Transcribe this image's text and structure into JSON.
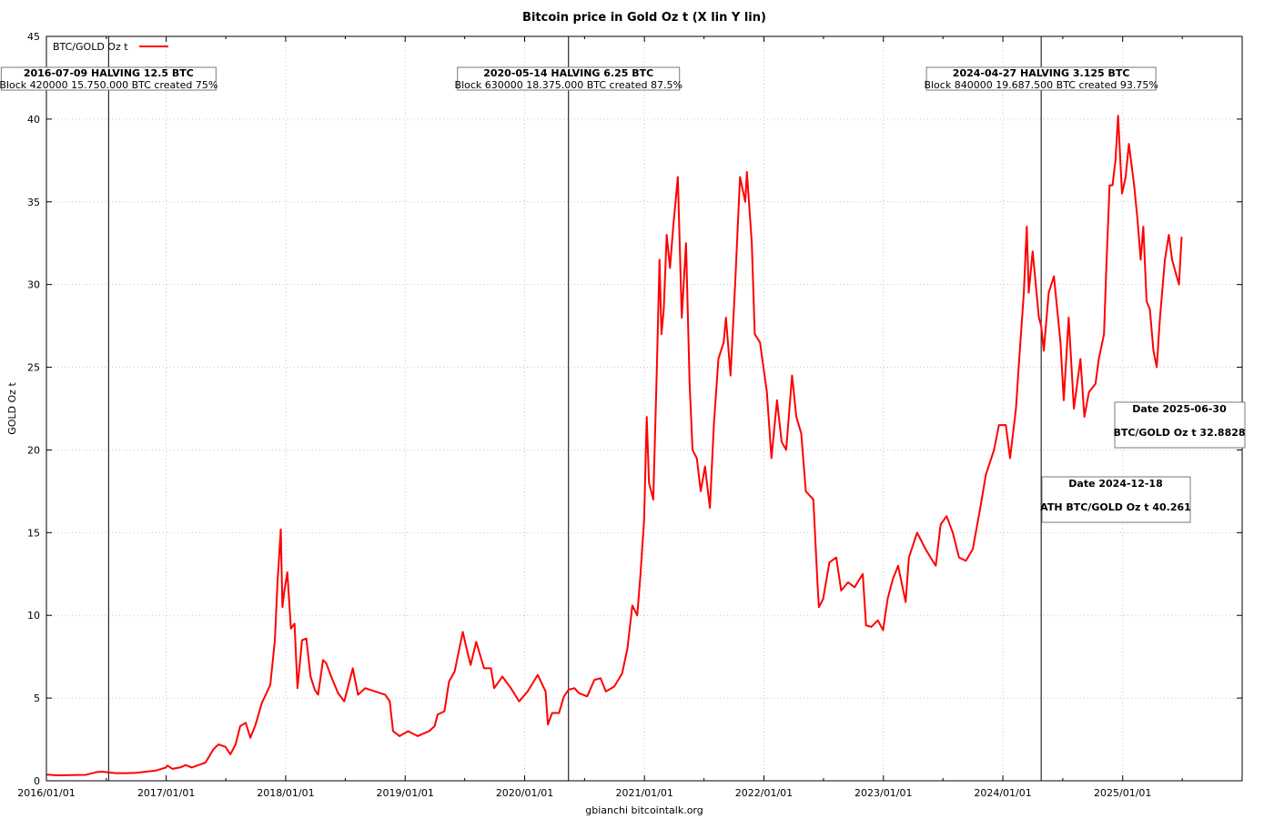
{
  "chart_data": {
    "type": "line",
    "title": "Bitcoin price in Gold Oz t (X lin Y lin)",
    "xlabel": "gbianchi bitcointalk.org",
    "ylabel": "GOLD Oz t",
    "xlim": [
      "2016-01-01",
      "2026-01-01"
    ],
    "ylim": [
      0,
      45
    ],
    "x_ticks": [
      "2016/01/01",
      "2017/01/01",
      "2018/01/01",
      "2019/01/01",
      "2020/01/01",
      "2021/01/01",
      "2022/01/01",
      "2023/01/01",
      "2024/01/01",
      "2025/01/01"
    ],
    "y_ticks": [
      0,
      5,
      10,
      15,
      20,
      25,
      30,
      35,
      40,
      45
    ],
    "grid": true,
    "legend_position": "top-left",
    "color": "#ff0000",
    "series": [
      {
        "name": "BTC/GOLD Oz t",
        "points": [
          [
            "2016-01-01",
            0.38
          ],
          [
            "2016-02-01",
            0.33
          ],
          [
            "2016-03-01",
            0.34
          ],
          [
            "2016-04-01",
            0.35
          ],
          [
            "2016-05-01",
            0.36
          ],
          [
            "2016-06-01",
            0.52
          ],
          [
            "2016-06-20",
            0.55
          ],
          [
            "2016-07-09",
            0.5
          ],
          [
            "2016-08-01",
            0.46
          ],
          [
            "2016-09-01",
            0.46
          ],
          [
            "2016-10-01",
            0.48
          ],
          [
            "2016-11-01",
            0.55
          ],
          [
            "2016-12-01",
            0.62
          ],
          [
            "2016-12-31",
            0.8
          ],
          [
            "2017-01-05",
            0.92
          ],
          [
            "2017-01-20",
            0.72
          ],
          [
            "2017-02-15",
            0.82
          ],
          [
            "2017-03-01",
            0.95
          ],
          [
            "2017-03-20",
            0.8
          ],
          [
            "2017-04-10",
            0.95
          ],
          [
            "2017-05-01",
            1.1
          ],
          [
            "2017-05-25",
            1.9
          ],
          [
            "2017-06-10",
            2.2
          ],
          [
            "2017-07-01",
            2.05
          ],
          [
            "2017-07-16",
            1.6
          ],
          [
            "2017-08-01",
            2.2
          ],
          [
            "2017-08-15",
            3.3
          ],
          [
            "2017-09-01",
            3.5
          ],
          [
            "2017-09-15",
            2.6
          ],
          [
            "2017-10-01",
            3.4
          ],
          [
            "2017-10-20",
            4.7
          ],
          [
            "2017-11-01",
            5.2
          ],
          [
            "2017-11-15",
            5.8
          ],
          [
            "2017-11-29",
            8.5
          ],
          [
            "2017-12-07",
            12.0
          ],
          [
            "2017-12-17",
            15.2
          ],
          [
            "2017-12-22",
            10.5
          ],
          [
            "2017-12-28",
            11.5
          ],
          [
            "2018-01-06",
            12.6
          ],
          [
            "2018-01-17",
            9.2
          ],
          [
            "2018-01-28",
            9.5
          ],
          [
            "2018-02-06",
            5.6
          ],
          [
            "2018-02-20",
            8.5
          ],
          [
            "2018-03-05",
            8.6
          ],
          [
            "2018-03-18",
            6.3
          ],
          [
            "2018-03-31",
            5.5
          ],
          [
            "2018-04-10",
            5.2
          ],
          [
            "2018-04-25",
            7.3
          ],
          [
            "2018-05-05",
            7.1
          ],
          [
            "2018-05-20",
            6.3
          ],
          [
            "2018-06-10",
            5.3
          ],
          [
            "2018-06-29",
            4.8
          ],
          [
            "2018-07-25",
            6.8
          ],
          [
            "2018-08-10",
            5.2
          ],
          [
            "2018-09-01",
            5.6
          ],
          [
            "2018-10-01",
            5.4
          ],
          [
            "2018-11-01",
            5.2
          ],
          [
            "2018-11-15",
            4.8
          ],
          [
            "2018-11-25",
            3.0
          ],
          [
            "2018-12-15",
            2.7
          ],
          [
            "2019-01-10",
            3.0
          ],
          [
            "2019-02-08",
            2.7
          ],
          [
            "2019-03-15",
            3.0
          ],
          [
            "2019-04-01",
            3.3
          ],
          [
            "2019-04-10",
            4.0
          ],
          [
            "2019-05-01",
            4.2
          ],
          [
            "2019-05-15",
            6.0
          ],
          [
            "2019-06-01",
            6.6
          ],
          [
            "2019-06-26",
            9.0
          ],
          [
            "2019-07-10",
            7.8
          ],
          [
            "2019-07-20",
            7.0
          ],
          [
            "2019-08-06",
            8.4
          ],
          [
            "2019-08-30",
            6.8
          ],
          [
            "2019-09-20",
            6.8
          ],
          [
            "2019-09-30",
            5.6
          ],
          [
            "2019-10-25",
            6.3
          ],
          [
            "2019-11-20",
            5.6
          ],
          [
            "2019-12-15",
            4.8
          ],
          [
            "2020-01-10",
            5.4
          ],
          [
            "2020-02-10",
            6.4
          ],
          [
            "2020-03-05",
            5.4
          ],
          [
            "2020-03-12",
            3.4
          ],
          [
            "2020-03-25",
            4.1
          ],
          [
            "2020-04-15",
            4.1
          ],
          [
            "2020-04-30",
            5.1
          ],
          [
            "2020-05-14",
            5.5
          ],
          [
            "2020-06-01",
            5.6
          ],
          [
            "2020-06-15",
            5.3
          ],
          [
            "2020-07-10",
            5.1
          ],
          [
            "2020-08-01",
            6.1
          ],
          [
            "2020-08-20",
            6.2
          ],
          [
            "2020-09-05",
            5.4
          ],
          [
            "2020-10-01",
            5.7
          ],
          [
            "2020-10-25",
            6.5
          ],
          [
            "2020-11-10",
            8.0
          ],
          [
            "2020-11-25",
            10.6
          ],
          [
            "2020-12-10",
            10.0
          ],
          [
            "2020-12-20",
            12.5
          ],
          [
            "2020-12-31",
            15.8
          ],
          [
            "2021-01-08",
            22.0
          ],
          [
            "2021-01-15",
            18.0
          ],
          [
            "2021-01-28",
            17.0
          ],
          [
            "2021-02-08",
            25.0
          ],
          [
            "2021-02-16",
            31.5
          ],
          [
            "2021-02-22",
            27.0
          ],
          [
            "2021-03-01",
            28.5
          ],
          [
            "2021-03-10",
            33.0
          ],
          [
            "2021-03-20",
            31.0
          ],
          [
            "2021-03-30",
            33.5
          ],
          [
            "2021-04-13",
            36.5
          ],
          [
            "2021-04-25",
            28.0
          ],
          [
            "2021-05-08",
            32.5
          ],
          [
            "2021-05-19",
            24.0
          ],
          [
            "2021-05-28",
            20.0
          ],
          [
            "2021-06-10",
            19.5
          ],
          [
            "2021-06-22",
            17.5
          ],
          [
            "2021-07-05",
            19.0
          ],
          [
            "2021-07-20",
            16.5
          ],
          [
            "2021-08-01",
            21.5
          ],
          [
            "2021-08-15",
            25.5
          ],
          [
            "2021-08-31",
            26.5
          ],
          [
            "2021-09-07",
            28.0
          ],
          [
            "2021-09-21",
            24.5
          ],
          [
            "2021-10-05",
            30.0
          ],
          [
            "2021-10-20",
            36.5
          ],
          [
            "2021-11-05",
            35.0
          ],
          [
            "2021-11-10",
            36.8
          ],
          [
            "2021-11-25",
            32.5
          ],
          [
            "2021-12-04",
            27.0
          ],
          [
            "2021-12-20",
            26.5
          ],
          [
            "2022-01-10",
            23.5
          ],
          [
            "2022-01-24",
            19.5
          ],
          [
            "2022-02-10",
            23.0
          ],
          [
            "2022-02-24",
            20.5
          ],
          [
            "2022-03-10",
            20.0
          ],
          [
            "2022-03-28",
            24.5
          ],
          [
            "2022-04-10",
            22.0
          ],
          [
            "2022-04-25",
            21.0
          ],
          [
            "2022-05-09",
            17.5
          ],
          [
            "2022-06-01",
            17.0
          ],
          [
            "2022-06-14",
            11.8
          ],
          [
            "2022-06-18",
            10.5
          ],
          [
            "2022-07-01",
            11.0
          ],
          [
            "2022-07-20",
            13.2
          ],
          [
            "2022-08-10",
            13.5
          ],
          [
            "2022-08-25",
            11.5
          ],
          [
            "2022-09-15",
            12.0
          ],
          [
            "2022-10-05",
            11.7
          ],
          [
            "2022-10-30",
            12.5
          ],
          [
            "2022-11-09",
            9.4
          ],
          [
            "2022-11-25",
            9.3
          ],
          [
            "2022-12-15",
            9.7
          ],
          [
            "2022-12-31",
            9.1
          ],
          [
            "2023-01-14",
            11.0
          ],
          [
            "2023-01-30",
            12.2
          ],
          [
            "2023-02-15",
            13.0
          ],
          [
            "2023-03-10",
            10.8
          ],
          [
            "2023-03-20",
            13.5
          ],
          [
            "2023-04-14",
            15.0
          ],
          [
            "2023-05-10",
            14.0
          ],
          [
            "2023-05-25",
            13.5
          ],
          [
            "2023-06-10",
            13.0
          ],
          [
            "2023-06-25",
            15.5
          ],
          [
            "2023-07-13",
            16.0
          ],
          [
            "2023-08-01",
            15.0
          ],
          [
            "2023-08-20",
            13.5
          ],
          [
            "2023-09-10",
            13.3
          ],
          [
            "2023-10-01",
            14.0
          ],
          [
            "2023-10-24,",
            16.5
          ],
          [
            "2023-11-10",
            18.5
          ],
          [
            "2023-12-05",
            20.0
          ],
          [
            "2023-12-20",
            21.5
          ],
          [
            "2024-01-10",
            21.5
          ],
          [
            "2024-01-23",
            19.5
          ],
          [
            "2024-02-10",
            22.5
          ],
          [
            "2024-02-20",
            25.5
          ],
          [
            "2024-03-05",
            29.5
          ],
          [
            "2024-03-14",
            33.5
          ],
          [
            "2024-03-20",
            29.5
          ],
          [
            "2024-04-01",
            32.0
          ],
          [
            "2024-04-20",
            28.0
          ],
          [
            "2024-04-27",
            27.5
          ],
          [
            "2024-05-05",
            26.0
          ],
          [
            "2024-05-20",
            29.5
          ],
          [
            "2024-06-05",
            30.5
          ],
          [
            "2024-06-25",
            26.5
          ],
          [
            "2024-07-05",
            23.0
          ],
          [
            "2024-07-20",
            28.0
          ],
          [
            "2024-08-05",
            22.5
          ],
          [
            "2024-08-25",
            25.5
          ],
          [
            "2024-09-06",
            22.0
          ],
          [
            "2024-09-20",
            23.5
          ],
          [
            "2024-10-10",
            24.0
          ],
          [
            "2024-10-20",
            25.5
          ],
          [
            "2024-11-05",
            27.0
          ],
          [
            "2024-11-12",
            31.0
          ],
          [
            "2024-11-22",
            36.0
          ],
          [
            "2024-12-01",
            36.0
          ],
          [
            "2024-12-10",
            37.5
          ],
          [
            "2024-12-18",
            40.2
          ],
          [
            "2024-12-30",
            35.5
          ],
          [
            "2025-01-10",
            36.5
          ],
          [
            "2025-01-20",
            38.5
          ],
          [
            "2025-02-05",
            36.0
          ],
          [
            "2025-02-15",
            34.0
          ],
          [
            "2025-02-25",
            31.5
          ],
          [
            "2025-03-05",
            33.5
          ],
          [
            "2025-03-15",
            29.0
          ],
          [
            "2025-03-25",
            28.5
          ],
          [
            "2025-04-05",
            26.0
          ],
          [
            "2025-04-15",
            25.0
          ],
          [
            "2025-04-25",
            28.0
          ],
          [
            "2025-05-10",
            31.5
          ],
          [
            "2025-05-22",
            33.0
          ],
          [
            "2025-06-01",
            31.5
          ],
          [
            "2025-06-15",
            30.5
          ],
          [
            "2025-06-22",
            30.0
          ],
          [
            "2025-06-30",
            32.88
          ]
        ]
      }
    ],
    "halvings": [
      {
        "date": "2016-07-09",
        "line1": "2016-07-09 HALVING 12.5 BTC",
        "line2": "Block 420000 15.750.000 BTC created 75%"
      },
      {
        "date": "2020-05-14",
        "line1": "2020-05-14 HALVING 6.25 BTC",
        "line2": "Block 630000 18.375.000 BTC created 87.5%"
      },
      {
        "date": "2024-04-27",
        "line1": "2024-04-27 HALVING 3.125 BTC",
        "line2": "Block 840000 19.687.500 BTC created 93.75%"
      }
    ],
    "info_boxes": [
      {
        "line1": "Date 2025-06-30",
        "line2": "BTC/GOLD Oz t 32.8828"
      },
      {
        "line1": "Date 2024-12-18",
        "line2": "ATH BTC/GOLD Oz t 40.261"
      }
    ]
  }
}
